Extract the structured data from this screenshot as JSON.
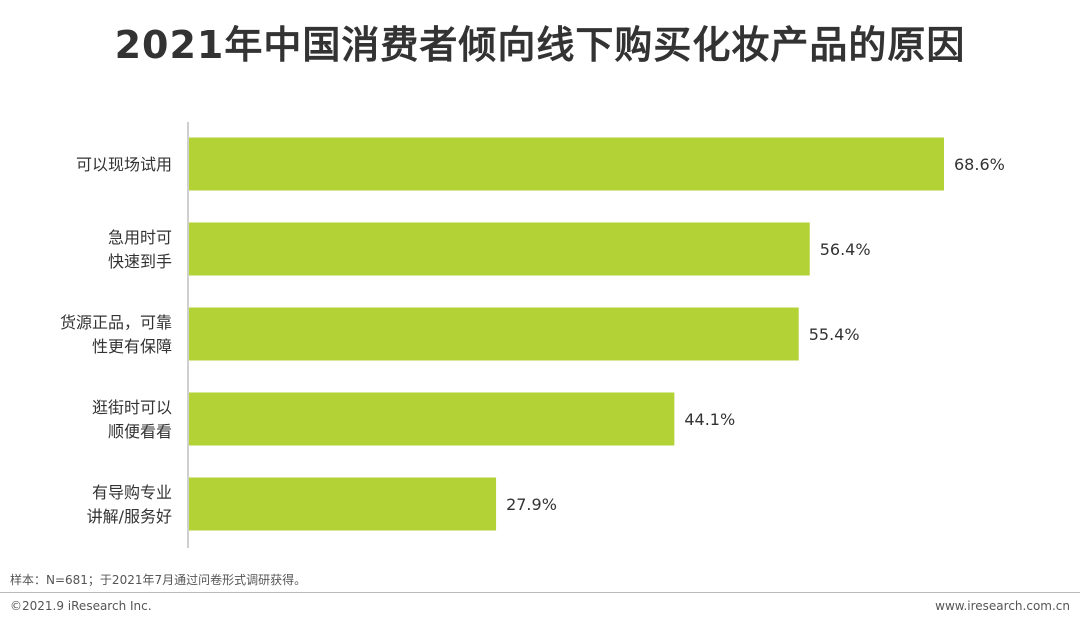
{
  "title": "2021年中国消费者倾向线下购买化妆产品的原因",
  "note": "样本：N=681；于2021年7月通过问卷形式调研获得。",
  "footer": {
    "copyright": "©2021.9 iResearch Inc.",
    "website": "www.iresearch.com.cn"
  },
  "colors": {
    "bar": "#B2D235",
    "axis": "#BFBFBF",
    "text": "#333333"
  },
  "chart_data": {
    "type": "bar",
    "orientation": "horizontal",
    "title": "2021年中国消费者倾向线下购买化妆产品的原因",
    "categories": [
      [
        "可以现场试用"
      ],
      [
        "急用时可",
        "快速到手"
      ],
      [
        "货源正品，可靠",
        "性更有保障"
      ],
      [
        "逛街时可以",
        "顺便看看"
      ],
      [
        "有导购专业",
        "讲解/服务好"
      ]
    ],
    "values": [
      68.6,
      56.4,
      55.4,
      44.1,
      27.9
    ],
    "value_labels": [
      "68.6%",
      "56.4%",
      "55.4%",
      "44.1%",
      "27.9%"
    ],
    "unit": "%",
    "xlim": [
      0,
      68.6
    ],
    "grid": false,
    "legend": "none"
  }
}
